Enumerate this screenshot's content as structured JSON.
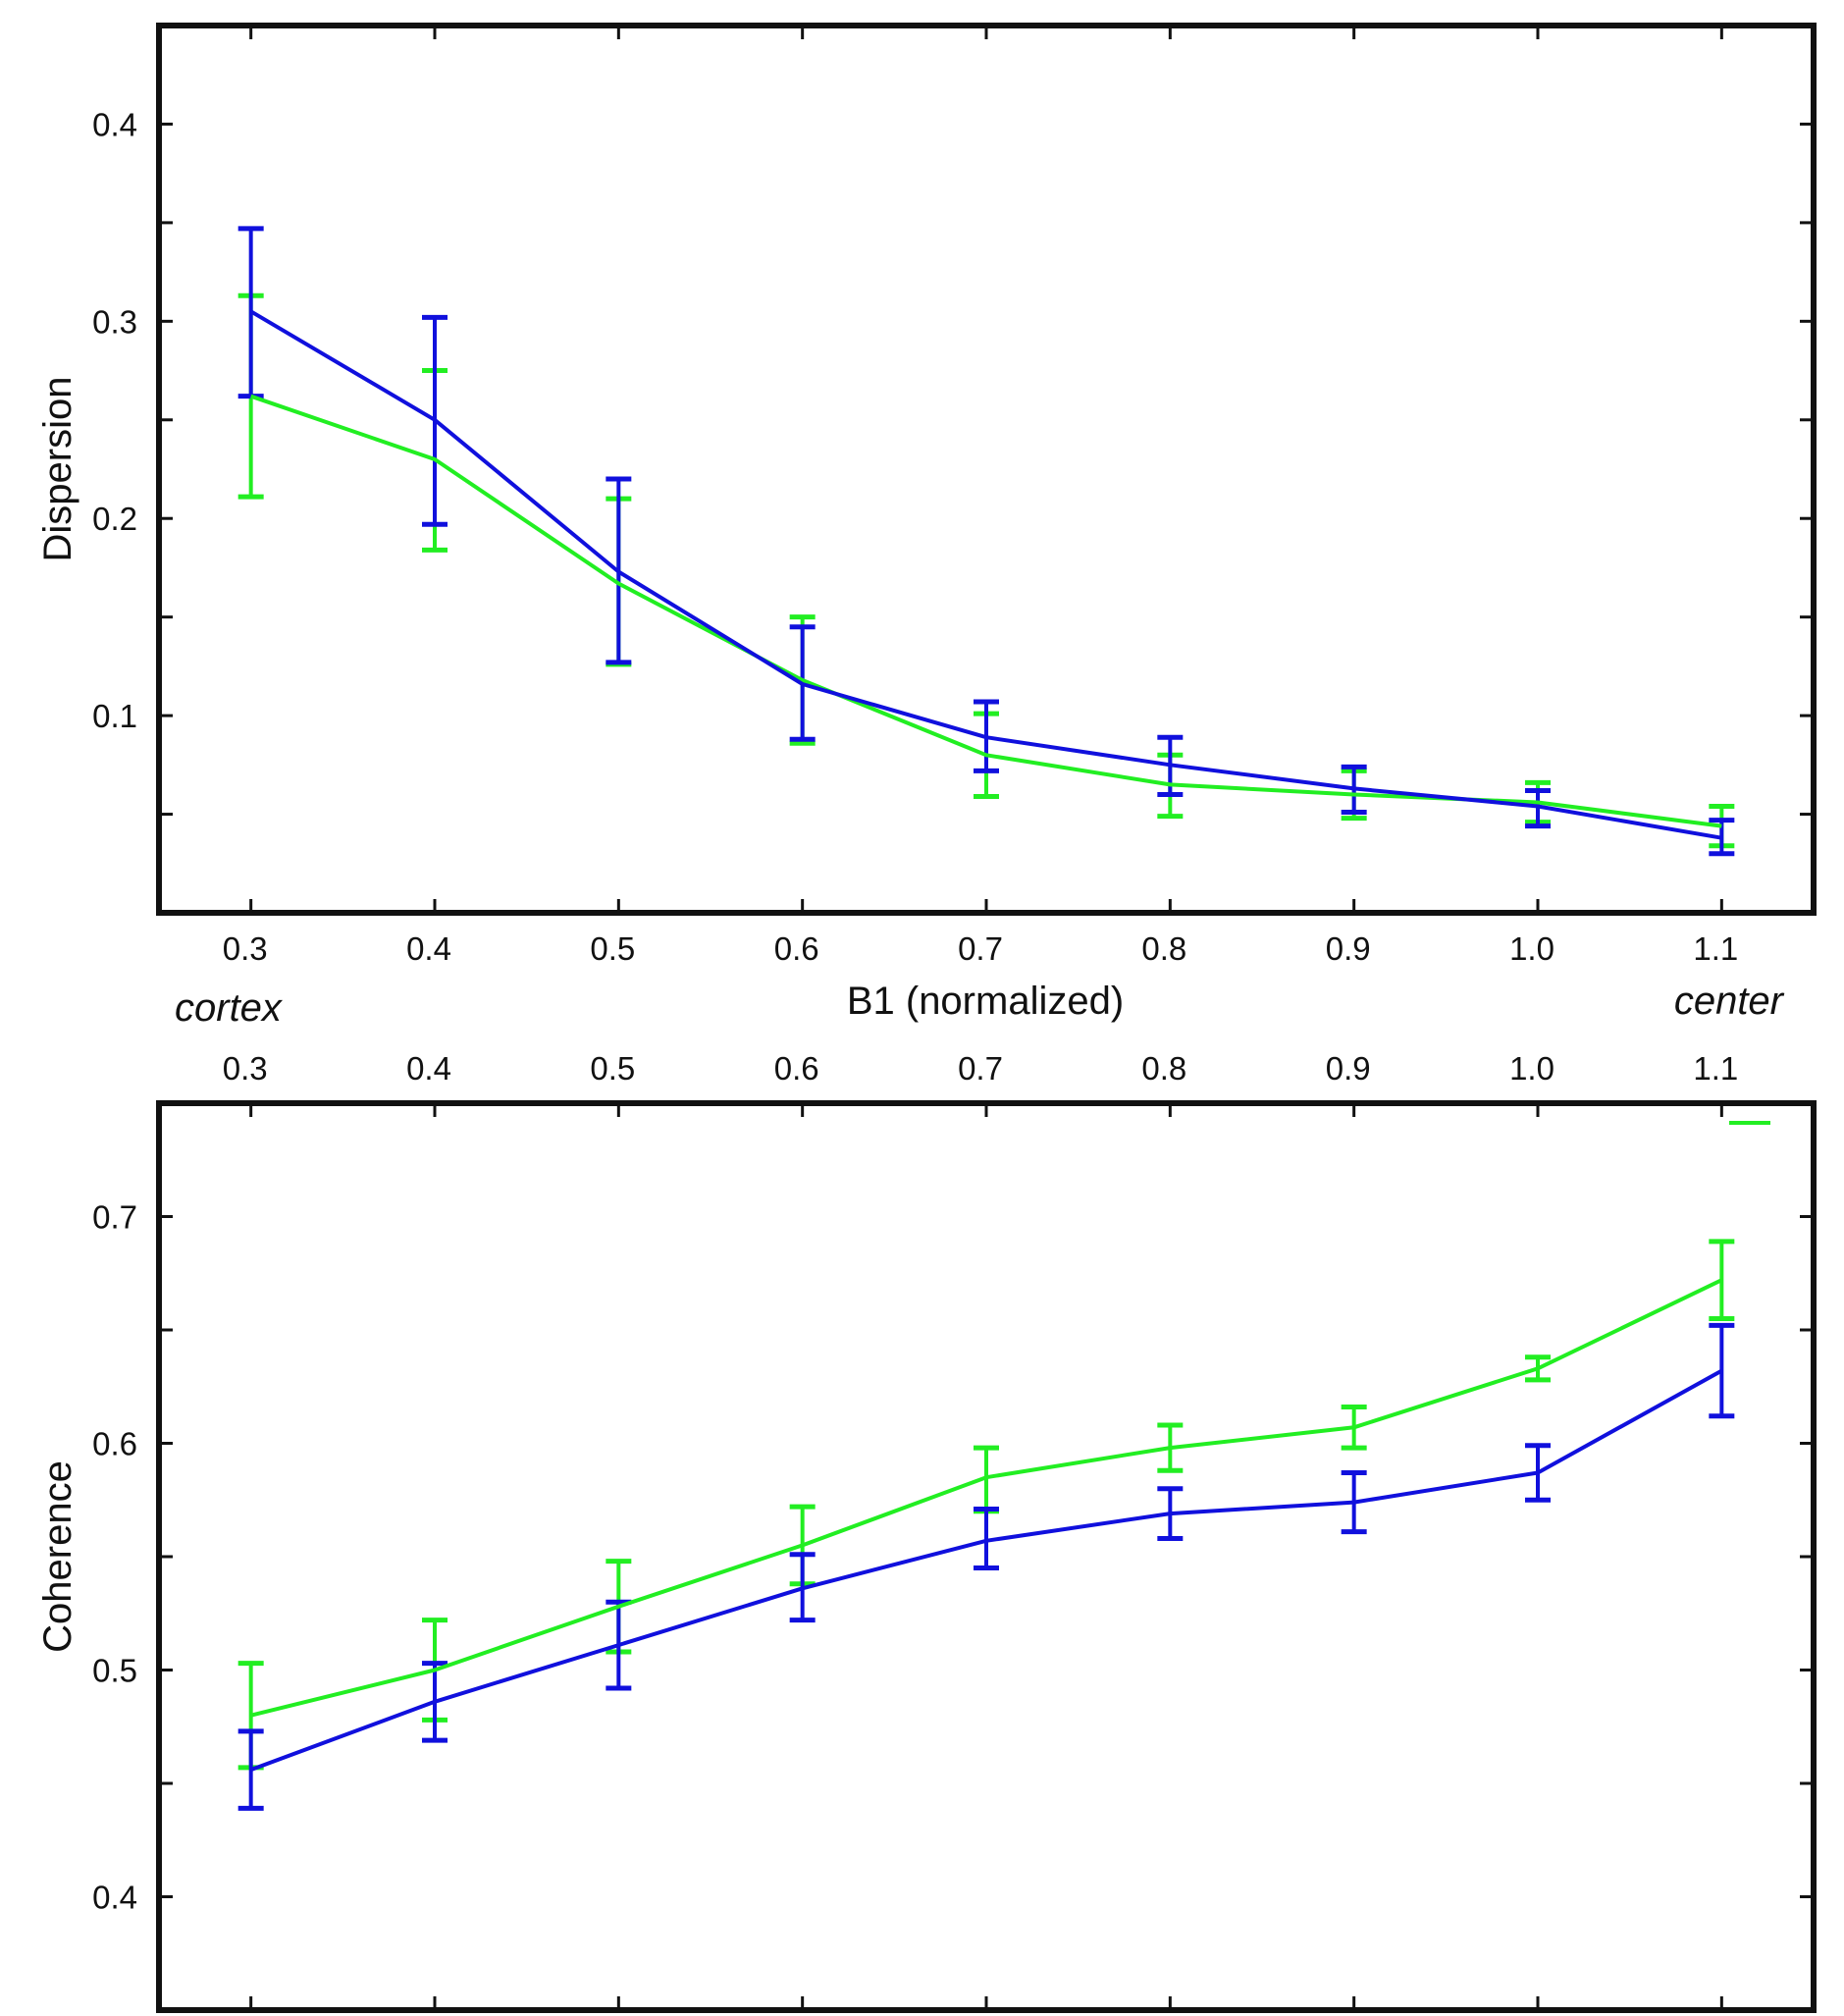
{
  "x_axis": {
    "label": "B1 (normalized)",
    "left_annotation": "cortex",
    "right_annotation": "center"
  },
  "chart_data": [
    {
      "type": "line",
      "panel": "top",
      "title": "",
      "xlabel": "B1 (normalized)",
      "ylabel": "Dispersion",
      "x": [
        0.3,
        0.4,
        0.5,
        0.6,
        0.7,
        0.8,
        0.9,
        1.0,
        1.1
      ],
      "x_tick_labels": [
        "0.3",
        "0.4",
        "0.5",
        "0.6",
        "0.7",
        "0.8",
        "0.9",
        "1.0",
        "1.1"
      ],
      "xlim": [
        0.25,
        1.15
      ],
      "ylim": [
        0.0,
        0.45
      ],
      "y_tick_labels": [
        "0.1",
        "0.2",
        "0.3",
        "0.4"
      ],
      "y_ticks": [
        0.1,
        0.2,
        0.3,
        0.4
      ],
      "y_minor_ticks": [
        0.05,
        0.15,
        0.25,
        0.35
      ],
      "grid": false,
      "series": [
        {
          "name": "green",
          "color": "#22ee22",
          "values": [
            0.262,
            0.23,
            0.167,
            0.118,
            0.08,
            0.065,
            0.06,
            0.056,
            0.044
          ],
          "err_low": [
            0.211,
            0.184,
            0.126,
            0.086,
            0.059,
            0.049,
            0.048,
            0.046,
            0.034
          ],
          "err_high": [
            0.313,
            0.275,
            0.21,
            0.15,
            0.101,
            0.08,
            0.072,
            0.066,
            0.054
          ]
        },
        {
          "name": "blue",
          "color": "#1010dd",
          "values": [
            0.305,
            0.25,
            0.173,
            0.116,
            0.089,
            0.075,
            0.063,
            0.054,
            0.038
          ],
          "err_low": [
            0.262,
            0.197,
            0.127,
            0.088,
            0.072,
            0.06,
            0.051,
            0.044,
            0.03
          ],
          "err_high": [
            0.347,
            0.302,
            0.22,
            0.145,
            0.107,
            0.089,
            0.074,
            0.062,
            0.047
          ]
        }
      ]
    },
    {
      "type": "line",
      "panel": "bottom",
      "title": "",
      "xlabel": "",
      "ylabel": "Coherence",
      "x": [
        0.3,
        0.4,
        0.5,
        0.6,
        0.7,
        0.8,
        0.9,
        1.0,
        1.1
      ],
      "x_tick_labels": [
        "0.3",
        "0.4",
        "0.5",
        "0.6",
        "0.7",
        "0.8",
        "0.9",
        "1.0",
        "1.1"
      ],
      "xlim": [
        0.25,
        1.15
      ],
      "ylim": [
        0.35,
        0.75
      ],
      "y_tick_labels": [
        "0.4",
        "0.5",
        "0.6",
        "0.7"
      ],
      "y_ticks": [
        0.4,
        0.5,
        0.6,
        0.7
      ],
      "y_minor_ticks": [
        0.45,
        0.55,
        0.65
      ],
      "grid": false,
      "series": [
        {
          "name": "green",
          "color": "#22ee22",
          "values": [
            0.48,
            0.5,
            0.528,
            0.555,
            0.585,
            0.598,
            0.607,
            0.633,
            0.672
          ],
          "err_low": [
            0.457,
            0.478,
            0.508,
            0.538,
            0.57,
            0.588,
            0.598,
            0.628,
            0.655
          ],
          "err_high": [
            0.503,
            0.522,
            0.548,
            0.572,
            0.598,
            0.608,
            0.616,
            0.638,
            0.689
          ]
        },
        {
          "name": "blue",
          "color": "#1010dd",
          "values": [
            0.456,
            0.486,
            0.511,
            0.536,
            0.557,
            0.569,
            0.574,
            0.587,
            0.632
          ],
          "err_low": [
            0.439,
            0.469,
            0.492,
            0.522,
            0.545,
            0.558,
            0.561,
            0.575,
            0.612
          ],
          "err_high": [
            0.473,
            0.503,
            0.53,
            0.551,
            0.571,
            0.58,
            0.587,
            0.599,
            0.652
          ]
        }
      ]
    }
  ]
}
